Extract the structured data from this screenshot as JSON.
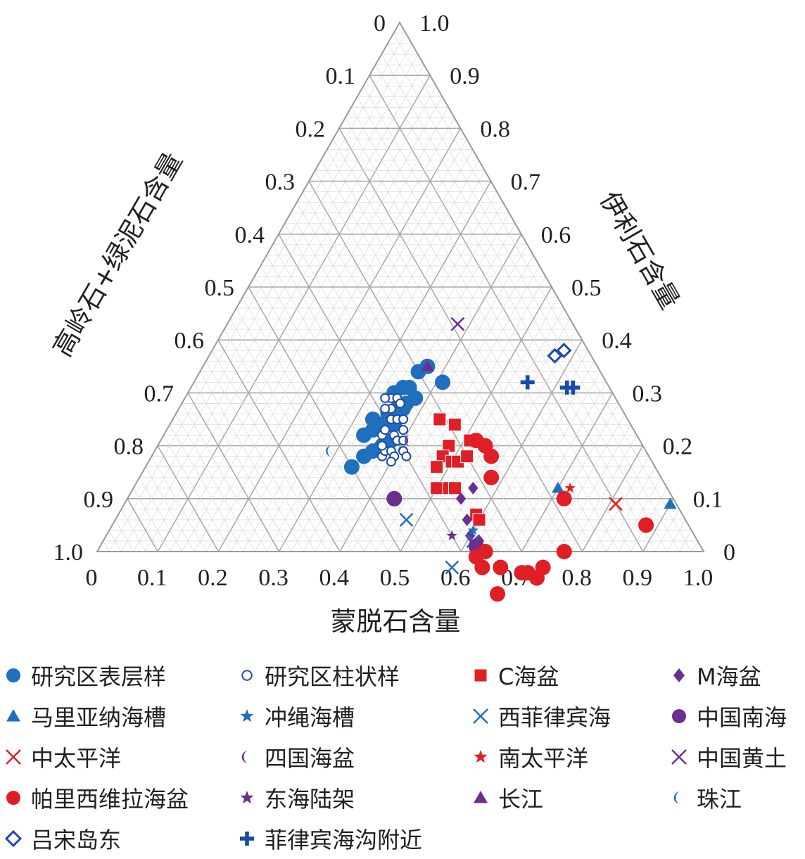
{
  "chart_data": {
    "type": "ternary scatter",
    "axes": {
      "bottom": {
        "label": "蒙脱石含量",
        "ticks": [
          "0",
          "0.1",
          "0.2",
          "0.3",
          "0.4",
          "0.5",
          "0.6",
          "0.7",
          "0.8",
          "0.9",
          "1.0"
        ]
      },
      "left": {
        "label": "高岭石+绿泥石含量",
        "ticks": [
          "0",
          "0.1",
          "0.2",
          "0.3",
          "0.4",
          "0.5",
          "0.6",
          "0.7",
          "0.8",
          "0.9",
          "1.0"
        ]
      },
      "right": {
        "label": "伊利石含量",
        "ticks": [
          "1.0",
          "0.9",
          "0.8",
          "0.7",
          "0.6",
          "0.5",
          "0.4",
          "0.3",
          "0.2",
          "0.1",
          "0"
        ]
      }
    },
    "grid": true,
    "legend_position": "bottom",
    "series": [
      {
        "name": "研究区表层样",
        "marker": "circle",
        "color": "#1f6fbf",
        "points": [
          [
            0.34,
            0.5
          ],
          [
            0.35,
            0.47
          ],
          [
            0.36,
            0.45
          ],
          [
            0.33,
            0.45
          ],
          [
            0.37,
            0.43
          ],
          [
            0.35,
            0.41
          ],
          [
            0.34,
            0.43
          ],
          [
            0.36,
            0.4
          ],
          [
            0.38,
            0.41
          ],
          [
            0.33,
            0.42
          ],
          [
            0.37,
            0.39
          ],
          [
            0.35,
            0.39
          ],
          [
            0.36,
            0.37
          ],
          [
            0.34,
            0.36
          ],
          [
            0.37,
            0.36
          ],
          [
            0.35,
            0.34
          ],
          [
            0.36,
            0.33
          ],
          [
            0.38,
            0.33
          ],
          [
            0.36,
            0.3
          ],
          [
            0.37,
            0.28
          ],
          [
            0.41,
            0.27
          ],
          [
            0.37,
            0.35
          ]
        ]
      },
      {
        "name": "研究区柱状样",
        "marker": "open-circle",
        "color": "#1b4aa8",
        "points": [
          [
            0.38,
            0.44
          ],
          [
            0.38,
            0.43
          ],
          [
            0.39,
            0.42
          ],
          [
            0.4,
            0.42
          ],
          [
            0.4,
            0.43
          ],
          [
            0.37,
            0.43
          ],
          [
            0.36,
            0.42
          ],
          [
            0.36,
            0.41
          ],
          [
            0.38,
            0.4
          ],
          [
            0.39,
            0.4
          ],
          [
            0.4,
            0.39
          ],
          [
            0.41,
            0.4
          ],
          [
            0.42,
            0.4
          ],
          [
            0.39,
            0.38
          ],
          [
            0.35,
            0.38
          ],
          [
            0.36,
            0.39
          ],
          [
            0.34,
            0.39
          ],
          [
            0.37,
            0.38
          ],
          [
            0.38,
            0.37
          ],
          [
            0.34,
            0.37
          ],
          [
            0.35,
            0.36
          ],
          [
            0.36,
            0.36
          ],
          [
            0.33,
            0.38
          ]
        ]
      },
      {
        "name": "C海盆",
        "marker": "square",
        "color": "#e01e26",
        "points": [
          [
            0.44,
            0.31
          ],
          [
            0.47,
            0.29
          ],
          [
            0.48,
            0.32
          ],
          [
            0.51,
            0.28
          ],
          [
            0.48,
            0.34
          ],
          [
            0.5,
            0.33
          ],
          [
            0.51,
            0.32
          ],
          [
            0.52,
            0.3
          ],
          [
            0.48,
            0.36
          ],
          [
            0.5,
            0.38
          ],
          [
            0.52,
            0.36
          ],
          [
            0.53,
            0.35
          ],
          [
            0.59,
            0.34
          ],
          [
            0.6,
            0.34
          ]
        ]
      },
      {
        "name": "M海盆",
        "marker": "diamond",
        "color": "#6a2f8f",
        "points": [
          [
            0.52,
            0.27
          ],
          [
            0.56,
            0.32
          ],
          [
            0.55,
            0.35
          ],
          [
            0.58,
            0.36
          ],
          [
            0.6,
            0.37
          ],
          [
            0.62,
            0.36
          ]
        ]
      },
      {
        "name": "马里亚纳海槽",
        "marker": "triangle",
        "color": "#1f6fbf",
        "points": [
          [
            0.7,
            0.18
          ],
          [
            0.9,
            0.01
          ],
          [
            0.88,
            0.07
          ]
        ]
      },
      {
        "name": "冲绳海槽",
        "marker": "star",
        "color": "#1f6fbf",
        "points": [
          [
            0.6,
            0.36
          ]
        ]
      },
      {
        "name": "西菲律宾海",
        "marker": "x",
        "color": "#1f6fbf",
        "points": [
          [
            0.61,
            0.37
          ],
          [
            0.48,
            0.46
          ],
          [
            0.6,
            0.43
          ]
        ]
      },
      {
        "name": "中国南海",
        "marker": "filled-circle",
        "color": "#6a2f8f",
        "points": [
          [
            0.44,
            0.46
          ],
          [
            0.62,
            0.37
          ]
        ]
      },
      {
        "name": "中太平洋",
        "marker": "x",
        "color": "#e01e26",
        "points": [
          [
            0.81,
            0.1
          ]
        ]
      },
      {
        "name": "四国海盆",
        "marker": "crescent",
        "color": "#6a2f8f",
        "points": [
          [
            0.41,
            0.38
          ]
        ]
      },
      {
        "name": "南太平洋",
        "marker": "star",
        "color": "#e01e26",
        "points": [
          [
            0.72,
            0.16
          ]
        ]
      },
      {
        "name": "中国黄土",
        "marker": "x",
        "color": "#6a2f8f",
        "points": [
          [
            0.38,
            0.19
          ]
        ]
      },
      {
        "name": "帕里西维拉海盆",
        "marker": "circle",
        "color": "#e01e26",
        "points": [
          [
            0.52,
            0.27
          ],
          [
            0.54,
            0.26
          ],
          [
            0.56,
            0.26
          ],
          [
            0.58,
            0.28
          ],
          [
            0.63,
            0.38
          ],
          [
            0.65,
            0.38
          ],
          [
            0.64,
            0.36
          ],
          [
            0.68,
            0.35
          ],
          [
            0.7,
            0.38
          ],
          [
            0.72,
            0.32
          ],
          [
            0.73,
            0.31
          ],
          [
            0.75,
            0.3
          ],
          [
            0.75,
            0.28
          ],
          [
            0.77,
            0.23
          ],
          [
            0.88,
            0.07
          ],
          [
            0.72,
            0.18
          ]
        ]
      },
      {
        "name": "东海陆架",
        "marker": "star",
        "color": "#6a2f8f",
        "points": [
          [
            0.57,
            0.4
          ]
        ]
      },
      {
        "name": "长江",
        "marker": "triangle",
        "color": "#6a2f8f",
        "points": [
          [
            0.37,
            0.28
          ]
        ]
      },
      {
        "name": "珠江",
        "marker": "crescent",
        "color": "#1f6fbf",
        "points": [
          [
            0.29,
            0.52
          ]
        ]
      },
      {
        "name": "吕宋岛东",
        "marker": "open-diamond",
        "color": "#1b4aa8",
        "points": [
          [
            0.58,
            0.04
          ],
          [
            0.57,
            0.06
          ]
        ]
      },
      {
        "name": "菲律宾海沟附近",
        "marker": "plus",
        "color": "#1b4aa8",
        "points": [
          [
            0.55,
            0.13
          ],
          [
            0.62,
            0.07
          ],
          [
            0.63,
            0.06
          ]
        ]
      }
    ]
  },
  "legend": {
    "items": [
      {
        "label": "研究区表层样",
        "marker": "circle",
        "color": "#1f6fbf"
      },
      {
        "label": "研究区柱状样",
        "marker": "open-circle",
        "color": "#1b4aa8"
      },
      {
        "label": "C海盆",
        "marker": "square",
        "color": "#e01e26"
      },
      {
        "label": "M海盆",
        "marker": "diamond",
        "color": "#6a2f8f"
      },
      {
        "label": "马里亚纳海槽",
        "marker": "triangle",
        "color": "#1f6fbf"
      },
      {
        "label": "冲绳海槽",
        "marker": "star",
        "color": "#1f6fbf"
      },
      {
        "label": "西菲律宾海",
        "marker": "x",
        "color": "#1f6fbf"
      },
      {
        "label": "中国南海",
        "marker": "filled-circle",
        "color": "#6a2f8f"
      },
      {
        "label": "中太平洋",
        "marker": "x",
        "color": "#e01e26"
      },
      {
        "label": "四国海盆",
        "marker": "crescent",
        "color": "#6a2f8f"
      },
      {
        "label": "南太平洋",
        "marker": "star",
        "color": "#e01e26"
      },
      {
        "label": "中国黄土",
        "marker": "x",
        "color": "#6a2f8f"
      },
      {
        "label": "帕里西维拉海盆",
        "marker": "circle",
        "color": "#e01e26"
      },
      {
        "label": "东海陆架",
        "marker": "star",
        "color": "#6a2f8f"
      },
      {
        "label": "长江",
        "marker": "triangle",
        "color": "#6a2f8f"
      },
      {
        "label": "珠江",
        "marker": "crescent",
        "color": "#1f6fbf"
      },
      {
        "label": "吕宋岛东",
        "marker": "open-diamond",
        "color": "#1b4aa8"
      },
      {
        "label": "菲律宾海沟附近",
        "marker": "plus",
        "color": "#1b4aa8"
      }
    ]
  }
}
